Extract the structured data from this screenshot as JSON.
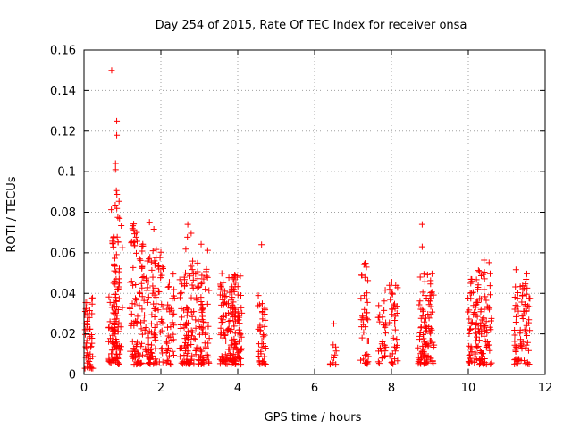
{
  "chart_data": {
    "type": "scatter",
    "title": "Day 254 of 2015, Rate Of TEC Index for receiver onsa",
    "xlabel": "GPS time / hours",
    "ylabel": "ROTI / TECUs",
    "xlim": [
      0,
      12
    ],
    "ylim": [
      0,
      0.16
    ],
    "x_ticks": [
      "0",
      "2",
      "4",
      "6",
      "8",
      "10",
      "12"
    ],
    "y_ticks": [
      "0",
      "0.02",
      "0.04",
      "0.06",
      "0.08",
      "0.1",
      "0.12",
      "0.14",
      "0.16"
    ],
    "grid": true,
    "marker": "plus",
    "color": "#ff0000",
    "clusters": [
      {
        "x": 0.12,
        "y_min": 0.003,
        "y_max": 0.038,
        "n": 50
      },
      {
        "x": 0.75,
        "y_min": 0.005,
        "y_max": 0.04,
        "n": 40
      },
      {
        "x": 0.82,
        "y_min": 0.005,
        "y_max": 0.095,
        "n": 60
      },
      {
        "x": 0.9,
        "y_min": 0.01,
        "y_max": 0.08,
        "n": 25
      },
      {
        "x": 1.3,
        "y_min": 0.005,
        "y_max": 0.075,
        "n": 60
      },
      {
        "x": 1.55,
        "y_min": 0.005,
        "y_max": 0.065,
        "n": 45
      },
      {
        "x": 1.75,
        "y_min": 0.005,
        "y_max": 0.076,
        "n": 50
      },
      {
        "x": 1.95,
        "y_min": 0.005,
        "y_max": 0.063,
        "n": 40
      },
      {
        "x": 2.25,
        "y_min": 0.005,
        "y_max": 0.05,
        "n": 40
      },
      {
        "x": 2.6,
        "y_min": 0.005,
        "y_max": 0.055,
        "n": 45
      },
      {
        "x": 2.75,
        "y_min": 0.005,
        "y_max": 0.07,
        "n": 45
      },
      {
        "x": 3.0,
        "y_min": 0.005,
        "y_max": 0.055,
        "n": 40
      },
      {
        "x": 3.15,
        "y_min": 0.005,
        "y_max": 0.066,
        "n": 45
      },
      {
        "x": 3.65,
        "y_min": 0.005,
        "y_max": 0.05,
        "n": 55
      },
      {
        "x": 3.85,
        "y_min": 0.005,
        "y_max": 0.05,
        "n": 65
      },
      {
        "x": 4.0,
        "y_min": 0.005,
        "y_max": 0.05,
        "n": 50
      },
      {
        "x": 4.62,
        "y_min": 0.005,
        "y_max": 0.04,
        "n": 40
      },
      {
        "x": 6.5,
        "y_min": 0.005,
        "y_max": 0.015,
        "n": 10
      },
      {
        "x": 7.3,
        "y_min": 0.005,
        "y_max": 0.055,
        "n": 40
      },
      {
        "x": 7.75,
        "y_min": 0.005,
        "y_max": 0.042,
        "n": 30
      },
      {
        "x": 8.05,
        "y_min": 0.005,
        "y_max": 0.047,
        "n": 35
      },
      {
        "x": 8.8,
        "y_min": 0.005,
        "y_max": 0.05,
        "n": 45
      },
      {
        "x": 9.0,
        "y_min": 0.005,
        "y_max": 0.05,
        "n": 50
      },
      {
        "x": 10.1,
        "y_min": 0.005,
        "y_max": 0.047,
        "n": 45
      },
      {
        "x": 10.3,
        "y_min": 0.005,
        "y_max": 0.052,
        "n": 50
      },
      {
        "x": 10.5,
        "y_min": 0.005,
        "y_max": 0.058,
        "n": 40
      },
      {
        "x": 11.3,
        "y_min": 0.005,
        "y_max": 0.052,
        "n": 40
      },
      {
        "x": 11.5,
        "y_min": 0.005,
        "y_max": 0.05,
        "n": 40
      }
    ],
    "outliers": [
      {
        "x": 0.72,
        "y": 0.15
      },
      {
        "x": 0.85,
        "y": 0.125
      },
      {
        "x": 0.85,
        "y": 0.118
      },
      {
        "x": 0.82,
        "y": 0.104
      },
      {
        "x": 0.82,
        "y": 0.101
      },
      {
        "x": 8.8,
        "y": 0.074
      },
      {
        "x": 8.8,
        "y": 0.063
      },
      {
        "x": 4.62,
        "y": 0.064
      },
      {
        "x": 2.7,
        "y": 0.074
      },
      {
        "x": 6.5,
        "y": 0.025
      }
    ]
  }
}
